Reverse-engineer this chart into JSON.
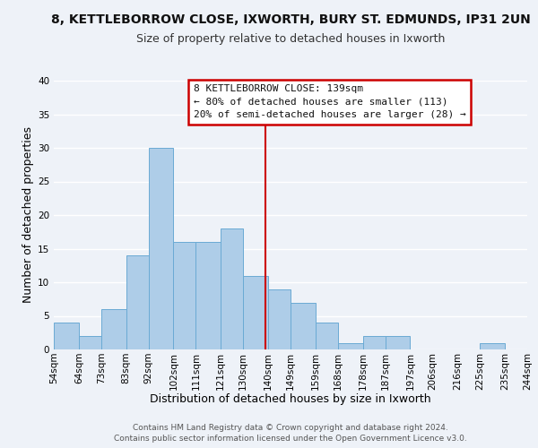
{
  "title": "8, KETTLEBORROW CLOSE, IXWORTH, BURY ST. EDMUNDS, IP31 2UN",
  "subtitle": "Size of property relative to detached houses in Ixworth",
  "xlabel": "Distribution of detached houses by size in Ixworth",
  "ylabel": "Number of detached properties",
  "bin_edges": [
    54,
    64,
    73,
    83,
    92,
    102,
    111,
    121,
    130,
    140,
    149,
    159,
    168,
    178,
    187,
    197,
    206,
    216,
    225,
    235,
    244
  ],
  "counts": [
    4,
    2,
    6,
    14,
    30,
    16,
    16,
    18,
    11,
    9,
    7,
    4,
    1,
    2,
    2,
    0,
    0,
    0,
    1,
    0
  ],
  "bar_color": "#aecde8",
  "bar_edge_color": "#6aaad4",
  "vline_x": 139,
  "vline_color": "#cc0000",
  "ylim": [
    0,
    40
  ],
  "yticks": [
    0,
    5,
    10,
    15,
    20,
    25,
    30,
    35,
    40
  ],
  "tick_labels": [
    "54sqm",
    "64sqm",
    "73sqm",
    "83sqm",
    "92sqm",
    "102sqm",
    "111sqm",
    "121sqm",
    "130sqm",
    "140sqm",
    "149sqm",
    "159sqm",
    "168sqm",
    "178sqm",
    "187sqm",
    "197sqm",
    "206sqm",
    "216sqm",
    "225sqm",
    "235sqm",
    "244sqm"
  ],
  "annotation_title": "8 KETTLEBORROW CLOSE: 139sqm",
  "annotation_line1": "← 80% of detached houses are smaller (113)",
  "annotation_line2": "20% of semi-detached houses are larger (28) →",
  "annotation_box_color": "#ffffff",
  "annotation_box_edge": "#cc0000",
  "footer_line1": "Contains HM Land Registry data © Crown copyright and database right 2024.",
  "footer_line2": "Contains public sector information licensed under the Open Government Licence v3.0.",
  "bg_color": "#eef2f8",
  "grid_color": "#ffffff",
  "title_fontsize": 10,
  "subtitle_fontsize": 9,
  "axis_label_fontsize": 9,
  "tick_fontsize": 7.5,
  "annotation_fontsize": 8,
  "footer_fontsize": 6.5
}
